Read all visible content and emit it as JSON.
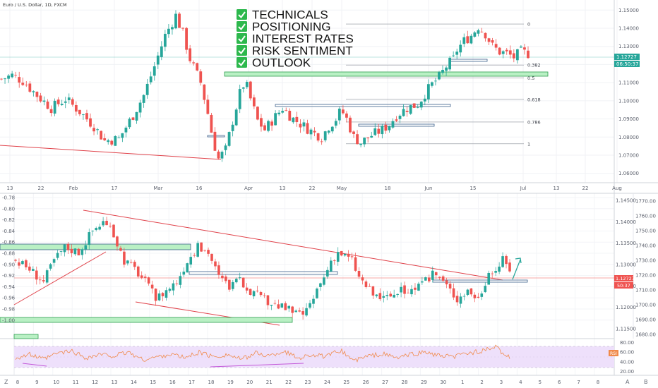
{
  "header": {
    "title": "Euro / U.S. Dollar, 1D, FXCM"
  },
  "checklist": [
    "TECHNICALS",
    "POSITIONING",
    "INTEREST RATES",
    "RISK SENTIMENT",
    "OUTLOOK"
  ],
  "colors": {
    "up": "#26a69a",
    "down": "#ef5350",
    "trend": "#e0424a",
    "zone_fill": "#b9f0c4",
    "zone_border": "#2e9e4f",
    "box_border": "#3b5f8a",
    "rsi_band": "#eee0fb",
    "rsi_line": "#f08a4b",
    "check_bg": "#2db84d",
    "price_tag": "#26a69a",
    "rsi_tag": "#f08a4b",
    "current_tag": "#ef5350"
  },
  "chart_data": [
    {
      "type": "candlestick",
      "title": "Euro / U.S. Dollar, 1D, FXCM",
      "x_ticks": [
        "13",
        "22",
        "Feb",
        "17",
        "Mar",
        "16",
        "Apr",
        "13",
        "22",
        "May",
        "18",
        "Jun",
        "15",
        "Jul",
        "13",
        "22",
        "Aug"
      ],
      "y_ticks": [
        "1.15000",
        "1.14000",
        "1.13000",
        "1.12000",
        "1.11000",
        "1.10000",
        "1.09000",
        "1.08000",
        "1.07000",
        "1.06000"
      ],
      "ylim": [
        1.056,
        1.154
      ],
      "price_tag": {
        "value": "1.12727",
        "countdown": "06:50:37"
      },
      "fib_levels": [
        {
          "label": "0",
          "value": 1.1423
        },
        {
          "label": "0.382",
          "value": 1.1197
        },
        {
          "label": "0.5",
          "value": 1.1126
        },
        {
          "label": "0.618",
          "value": 1.1008
        },
        {
          "label": "0.786",
          "value": 1.0883
        },
        {
          "label": "1",
          "value": 1.0763
        }
      ],
      "anchors": [
        [
          0,
          1.112
        ],
        [
          3,
          1.114
        ],
        [
          6,
          1.111
        ],
        [
          10,
          1.103
        ],
        [
          14,
          1.096
        ],
        [
          18,
          1.101
        ],
        [
          22,
          1.094
        ],
        [
          26,
          1.086
        ],
        [
          29,
          1.078
        ],
        [
          33,
          1.079
        ],
        [
          37,
          1.092
        ],
        [
          40,
          1.103
        ],
        [
          43,
          1.119
        ],
        [
          46,
          1.136
        ],
        [
          49,
          1.147
        ],
        [
          51,
          1.137
        ],
        [
          53,
          1.123
        ],
        [
          56,
          1.11
        ],
        [
          58,
          1.093
        ],
        [
          59.5,
          1.078
        ],
        [
          61,
          1.068
        ],
        [
          63,
          1.073
        ],
        [
          65,
          1.089
        ],
        [
          67,
          1.104
        ],
        [
          68.5,
          1.111
        ],
        [
          70,
          1.101
        ],
        [
          72,
          1.089
        ],
        [
          74,
          1.084
        ],
        [
          76,
          1.089
        ],
        [
          79,
          1.096
        ],
        [
          82,
          1.09
        ],
        [
          85,
          1.086
        ],
        [
          88,
          1.082
        ],
        [
          90,
          1.08
        ],
        [
          92,
          1.086
        ],
        [
          94,
          1.09
        ],
        [
          95.5,
          1.095
        ],
        [
          97,
          1.09
        ],
        [
          99,
          1.08
        ],
        [
          101,
          1.077
        ],
        [
          104,
          1.081
        ],
        [
          107,
          1.084
        ],
        [
          109,
          1.087
        ],
        [
          111,
          1.092
        ],
        [
          114,
          1.096
        ],
        [
          117,
          1.098
        ],
        [
          119,
          1.104
        ],
        [
          121,
          1.109
        ],
        [
          123,
          1.113
        ],
        [
          125,
          1.119
        ],
        [
          127,
          1.123
        ],
        [
          128,
          1.128
        ],
        [
          130,
          1.133
        ],
        [
          132,
          1.136
        ],
        [
          134,
          1.141
        ],
        [
          136,
          1.137
        ],
        [
          138,
          1.13
        ],
        [
          140,
          1.127
        ],
        [
          142,
          1.126
        ],
        [
          144,
          1.124
        ],
        [
          146,
          1.127
        ],
        [
          148,
          1.126
        ]
      ]
    },
    {
      "type": "candlestick",
      "title": "",
      "x_ticks": [
        "8",
        "9",
        "10",
        "11",
        "12",
        "13",
        "14",
        "15",
        "16",
        "17",
        "18",
        "19",
        "20",
        "21",
        "22",
        "23",
        "24",
        "25",
        "26",
        "27",
        "28",
        "29",
        "30",
        "1",
        "2",
        "3",
        "4",
        "5",
        "6",
        "7",
        "8"
      ],
      "y_ticks_left": [
        "-0.78",
        "-0.80",
        "-0.82",
        "-0.84",
        "-0.86",
        "-0.88",
        "-0.90",
        "-0.92",
        "-0.94",
        "-0.96",
        "-0.98",
        "-1.00"
      ],
      "y_ticks_right": [
        "1.14500",
        "1.14000",
        "1.13500",
        "1.13000",
        "1.12500",
        "1.12000",
        "1.11500"
      ],
      "y_ticks_far_right": [
        "1770.00",
        "1760.00",
        "1750.00",
        "1740.00",
        "1730.00",
        "1720.00",
        "1710.00",
        "1700.00",
        "1690.00",
        "1680.00"
      ],
      "ylim": [
        1.113,
        1.146
      ],
      "price_tag": {
        "value": "1.12727",
        "countdown": "50:37"
      },
      "anchors": [
        [
          0,
          1.131
        ],
        [
          4,
          1.129
        ],
        [
          8,
          1.126
        ],
        [
          11,
          1.131
        ],
        [
          14,
          1.134
        ],
        [
          18,
          1.133
        ],
        [
          22,
          1.138
        ],
        [
          25,
          1.14
        ],
        [
          28,
          1.137
        ],
        [
          31,
          1.131
        ],
        [
          34,
          1.129
        ],
        [
          37,
          1.126
        ],
        [
          40,
          1.122
        ],
        [
          43,
          1.124
        ],
        [
          46,
          1.126
        ],
        [
          49,
          1.131
        ],
        [
          52,
          1.134
        ],
        [
          55,
          1.133
        ],
        [
          58,
          1.127
        ],
        [
          61,
          1.125
        ],
        [
          64,
          1.126
        ],
        [
          67,
          1.124
        ],
        [
          70,
          1.122
        ],
        [
          73,
          1.121
        ],
        [
          76,
          1.12
        ],
        [
          79,
          1.119
        ],
        [
          81,
          1.118
        ],
        [
          84,
          1.12
        ],
        [
          86,
          1.124
        ],
        [
          88,
          1.127
        ],
        [
          90,
          1.131
        ],
        [
          92,
          1.133
        ],
        [
          94,
          1.132
        ],
        [
          96,
          1.131
        ],
        [
          98,
          1.127
        ],
        [
          100,
          1.125
        ],
        [
          102,
          1.123
        ],
        [
          105,
          1.122
        ],
        [
          108,
          1.123
        ],
        [
          111,
          1.124
        ],
        [
          113,
          1.124
        ],
        [
          116,
          1.125
        ],
        [
          119,
          1.128
        ],
        [
          121,
          1.127
        ],
        [
          124,
          1.124
        ],
        [
          126,
          1.122
        ],
        [
          129,
          1.124
        ],
        [
          132,
          1.122
        ],
        [
          134,
          1.126
        ],
        [
          137,
          1.129
        ],
        [
          139,
          1.131
        ],
        [
          141,
          1.129
        ]
      ]
    },
    {
      "type": "line",
      "title": "",
      "series_name": "RSI",
      "y_ticks": [
        "80.00",
        "60.00",
        "40.00",
        "20.00"
      ],
      "ylim": [
        15,
        85
      ],
      "band": [
        30,
        70
      ],
      "anchors": [
        [
          0,
          48
        ],
        [
          10,
          55
        ],
        [
          20,
          45
        ],
        [
          30,
          58
        ],
        [
          40,
          62
        ],
        [
          50,
          48
        ],
        [
          60,
          55
        ],
        [
          70,
          52
        ],
        [
          80,
          60
        ],
        [
          90,
          44
        ],
        [
          100,
          50
        ],
        [
          110,
          56
        ],
        [
          120,
          48
        ],
        [
          130,
          60
        ],
        [
          140,
          50
        ],
        [
          150,
          55
        ],
        [
          160,
          45
        ],
        [
          170,
          58
        ],
        [
          180,
          52
        ],
        [
          190,
          62
        ],
        [
          200,
          48
        ],
        [
          210,
          55
        ],
        [
          220,
          50
        ],
        [
          230,
          64
        ],
        [
          240,
          42
        ],
        [
          250,
          52
        ],
        [
          260,
          56
        ],
        [
          270,
          48
        ],
        [
          280,
          55
        ],
        [
          290,
          60
        ],
        [
          300,
          52
        ],
        [
          310,
          50
        ],
        [
          320,
          58
        ],
        [
          330,
          62
        ],
        [
          340,
          70
        ],
        [
          350,
          48
        ]
      ]
    }
  ]
}
